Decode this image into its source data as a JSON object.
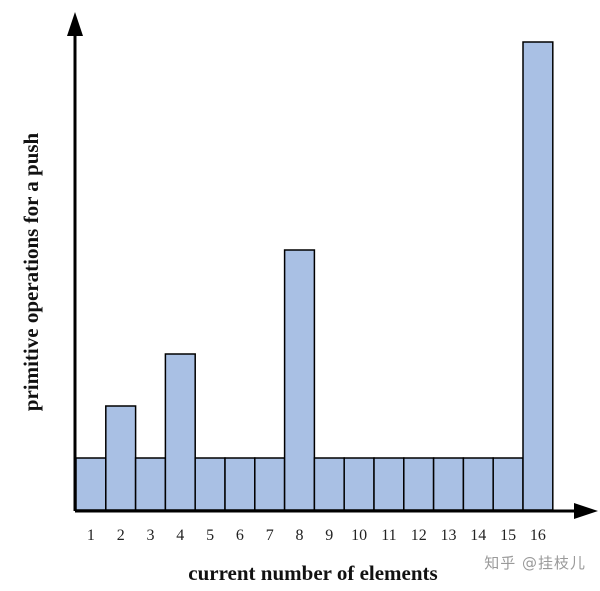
{
  "chart_data": {
    "type": "bar",
    "xlabel": "current number of elements",
    "ylabel": "primitive operations for a push",
    "categories": [
      "1",
      "2",
      "3",
      "4",
      "5",
      "6",
      "7",
      "8",
      "9",
      "10",
      "11",
      "12",
      "13",
      "14",
      "15",
      "16"
    ],
    "values": [
      1,
      2,
      1,
      3,
      1,
      1,
      1,
      5,
      1,
      1,
      1,
      1,
      1,
      1,
      1,
      9
    ],
    "ylim": [
      0,
      9.5
    ],
    "grid": false,
    "colors": {
      "bar_fill": "#a9c0e4",
      "bar_stroke": "#000000",
      "axis": "#000000"
    }
  },
  "watermark": "知乎 @挂枝儿"
}
